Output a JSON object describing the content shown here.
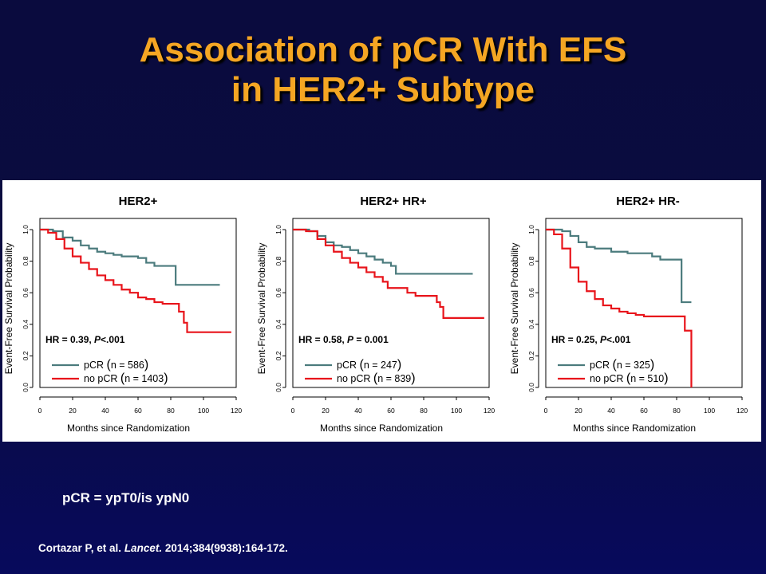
{
  "slide": {
    "title_line1": "Association of pCR With EFS",
    "title_line2": "in HER2+ Subtype",
    "footnote": "pCR = ypT0/is ypN0",
    "citation_authors": "Cortazar P, et al.",
    "citation_journal": "Lancet.",
    "citation_rest": "2014;384(9938):164-172.",
    "colors": {
      "title": "#f5a623",
      "background": "#0a0b3e",
      "pcr_line": "#4b7b7d",
      "no_pcr_line": "#e8141b"
    }
  },
  "chart_data": [
    {
      "type": "line",
      "title": "HER2+",
      "xlabel": "Months since Randomization",
      "ylabel": "Event-Free Survival Probability",
      "xlim": [
        0,
        120
      ],
      "ylim": [
        0,
        1.0
      ],
      "xticks": [
        0,
        20,
        40,
        60,
        80,
        100,
        120
      ],
      "yticks": [
        0.0,
        0.2,
        0.4,
        0.6,
        0.8,
        1.0
      ],
      "annotation_prefix": "HR = 0.39, ",
      "annotation_p": "P",
      "annotation_suffix": "<.001",
      "legend_position": "bottom-left",
      "series": [
        {
          "name": "pCR",
          "n_label": "n = 586",
          "color": "#4b7b7d",
          "x": [
            0,
            8,
            14,
            20,
            25,
            30,
            35,
            40,
            45,
            50,
            55,
            60,
            65,
            70,
            75,
            83,
            83,
            90,
            110
          ],
          "y": [
            1.0,
            0.99,
            0.95,
            0.93,
            0.9,
            0.88,
            0.86,
            0.85,
            0.84,
            0.83,
            0.83,
            0.82,
            0.79,
            0.77,
            0.77,
            0.77,
            0.65,
            0.65,
            0.65
          ]
        },
        {
          "name": "no pCR",
          "n_label": "n = 1403",
          "color": "#e8141b",
          "x": [
            0,
            5,
            10,
            15,
            20,
            25,
            30,
            35,
            40,
            45,
            50,
            55,
            60,
            65,
            70,
            75,
            80,
            85,
            85,
            88,
            88,
            90,
            90,
            100,
            117
          ],
          "y": [
            1.0,
            0.98,
            0.94,
            0.88,
            0.83,
            0.79,
            0.75,
            0.71,
            0.68,
            0.65,
            0.62,
            0.6,
            0.57,
            0.56,
            0.54,
            0.53,
            0.53,
            0.52,
            0.48,
            0.48,
            0.41,
            0.41,
            0.35,
            0.35,
            0.35
          ]
        }
      ]
    },
    {
      "type": "line",
      "title": "HER2+ HR+",
      "xlabel": "Months since Randomization",
      "ylabel": "Event-Free Survival Probability",
      "xlim": [
        0,
        120
      ],
      "ylim": [
        0,
        1.0
      ],
      "xticks": [
        0,
        20,
        40,
        60,
        80,
        100,
        120
      ],
      "yticks": [
        0.0,
        0.2,
        0.4,
        0.6,
        0.8,
        1.0
      ],
      "annotation_prefix": "HR = 0.58, ",
      "annotation_p": "P",
      "annotation_suffix": " = 0.001",
      "legend_position": "bottom-left",
      "series": [
        {
          "name": "pCR",
          "n_label": "n = 247",
          "color": "#4b7b7d",
          "x": [
            0,
            10,
            15,
            20,
            25,
            30,
            35,
            40,
            45,
            50,
            55,
            60,
            63,
            63,
            70,
            90,
            110
          ],
          "y": [
            1.0,
            0.99,
            0.96,
            0.92,
            0.9,
            0.89,
            0.87,
            0.85,
            0.83,
            0.81,
            0.79,
            0.77,
            0.75,
            0.72,
            0.72,
            0.72,
            0.72
          ]
        },
        {
          "name": "no pCR",
          "n_label": "n = 839",
          "color": "#e8141b",
          "x": [
            0,
            8,
            15,
            20,
            25,
            30,
            35,
            40,
            45,
            50,
            55,
            58,
            65,
            70,
            75,
            80,
            85,
            88,
            88,
            90,
            90,
            92,
            92,
            100,
            117
          ],
          "y": [
            1.0,
            0.99,
            0.94,
            0.9,
            0.86,
            0.82,
            0.79,
            0.76,
            0.73,
            0.7,
            0.67,
            0.63,
            0.63,
            0.6,
            0.58,
            0.58,
            0.58,
            0.58,
            0.54,
            0.54,
            0.51,
            0.51,
            0.44,
            0.44,
            0.44
          ]
        }
      ]
    },
    {
      "type": "line",
      "title": "HER2+ HR-",
      "xlabel": "Months since Randomization",
      "ylabel": "Event-Free Survival Probability",
      "xlim": [
        0,
        120
      ],
      "ylim": [
        0,
        1.0
      ],
      "xticks": [
        0,
        20,
        40,
        60,
        80,
        100,
        120
      ],
      "yticks": [
        0.0,
        0.2,
        0.4,
        0.6,
        0.8,
        1.0
      ],
      "annotation_prefix": "HR = 0.25, ",
      "annotation_p": "P",
      "annotation_suffix": "<.001",
      "legend_position": "bottom-left",
      "series": [
        {
          "name": "pCR",
          "n_label": "n = 325",
          "color": "#4b7b7d",
          "x": [
            0,
            10,
            15,
            20,
            25,
            30,
            40,
            50,
            60,
            65,
            70,
            80,
            83,
            83,
            89
          ],
          "y": [
            1.0,
            0.99,
            0.96,
            0.92,
            0.89,
            0.88,
            0.86,
            0.85,
            0.85,
            0.83,
            0.81,
            0.81,
            0.81,
            0.54,
            0.54
          ]
        },
        {
          "name": "no pCR",
          "n_label": "n = 510",
          "color": "#e8141b",
          "x": [
            0,
            5,
            10,
            15,
            20,
            25,
            30,
            35,
            40,
            45,
            50,
            55,
            60,
            70,
            85,
            85,
            89,
            89
          ],
          "y": [
            1.0,
            0.97,
            0.88,
            0.76,
            0.67,
            0.61,
            0.56,
            0.52,
            0.5,
            0.48,
            0.47,
            0.46,
            0.45,
            0.45,
            0.45,
            0.36,
            0.36,
            0.0
          ]
        }
      ]
    }
  ]
}
